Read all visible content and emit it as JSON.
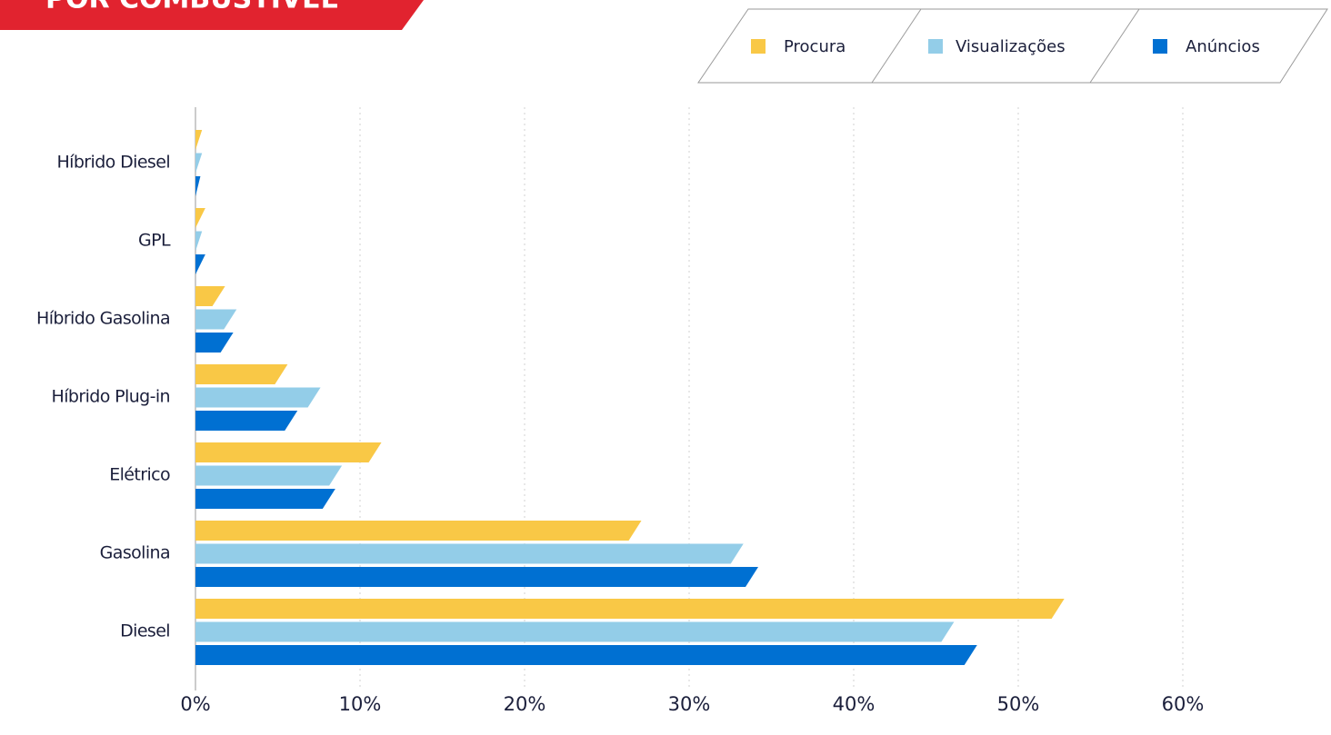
{
  "chart_data": {
    "type": "bar",
    "orientation": "horizontal",
    "title": "POR COMBUSTÍVEL",
    "categories": [
      "Híbrido Diesel",
      "GPL",
      "Híbrido Gasolina",
      "Híbrido Plug-in",
      "Elétrico",
      "Gasolina",
      "Diesel"
    ],
    "series": [
      {
        "name": "Procura",
        "color": "#f9c846",
        "values": [
          0.4,
          0.6,
          1.8,
          5.6,
          11.3,
          27.1,
          52.8
        ]
      },
      {
        "name": "Visualizações",
        "color": "#93cde8",
        "values": [
          0.4,
          0.4,
          2.5,
          7.6,
          8.9,
          33.3,
          46.1
        ]
      },
      {
        "name": "Anúncios",
        "color": "#0070d2",
        "values": [
          0.3,
          0.6,
          2.3,
          6.2,
          8.5,
          34.2,
          47.5
        ]
      }
    ],
    "xlim": [
      0,
      69
    ],
    "xticks": [
      {
        "value": 0,
        "label": "0%"
      },
      {
        "value": 10,
        "label": "10%"
      },
      {
        "value": 20,
        "label": "20%"
      },
      {
        "value": 30,
        "label": "30%"
      },
      {
        "value": 40,
        "label": "40%"
      },
      {
        "value": 50,
        "label": "50%"
      },
      {
        "value": 60,
        "label": "60%"
      }
    ],
    "grid": true,
    "legend": "top-right"
  }
}
